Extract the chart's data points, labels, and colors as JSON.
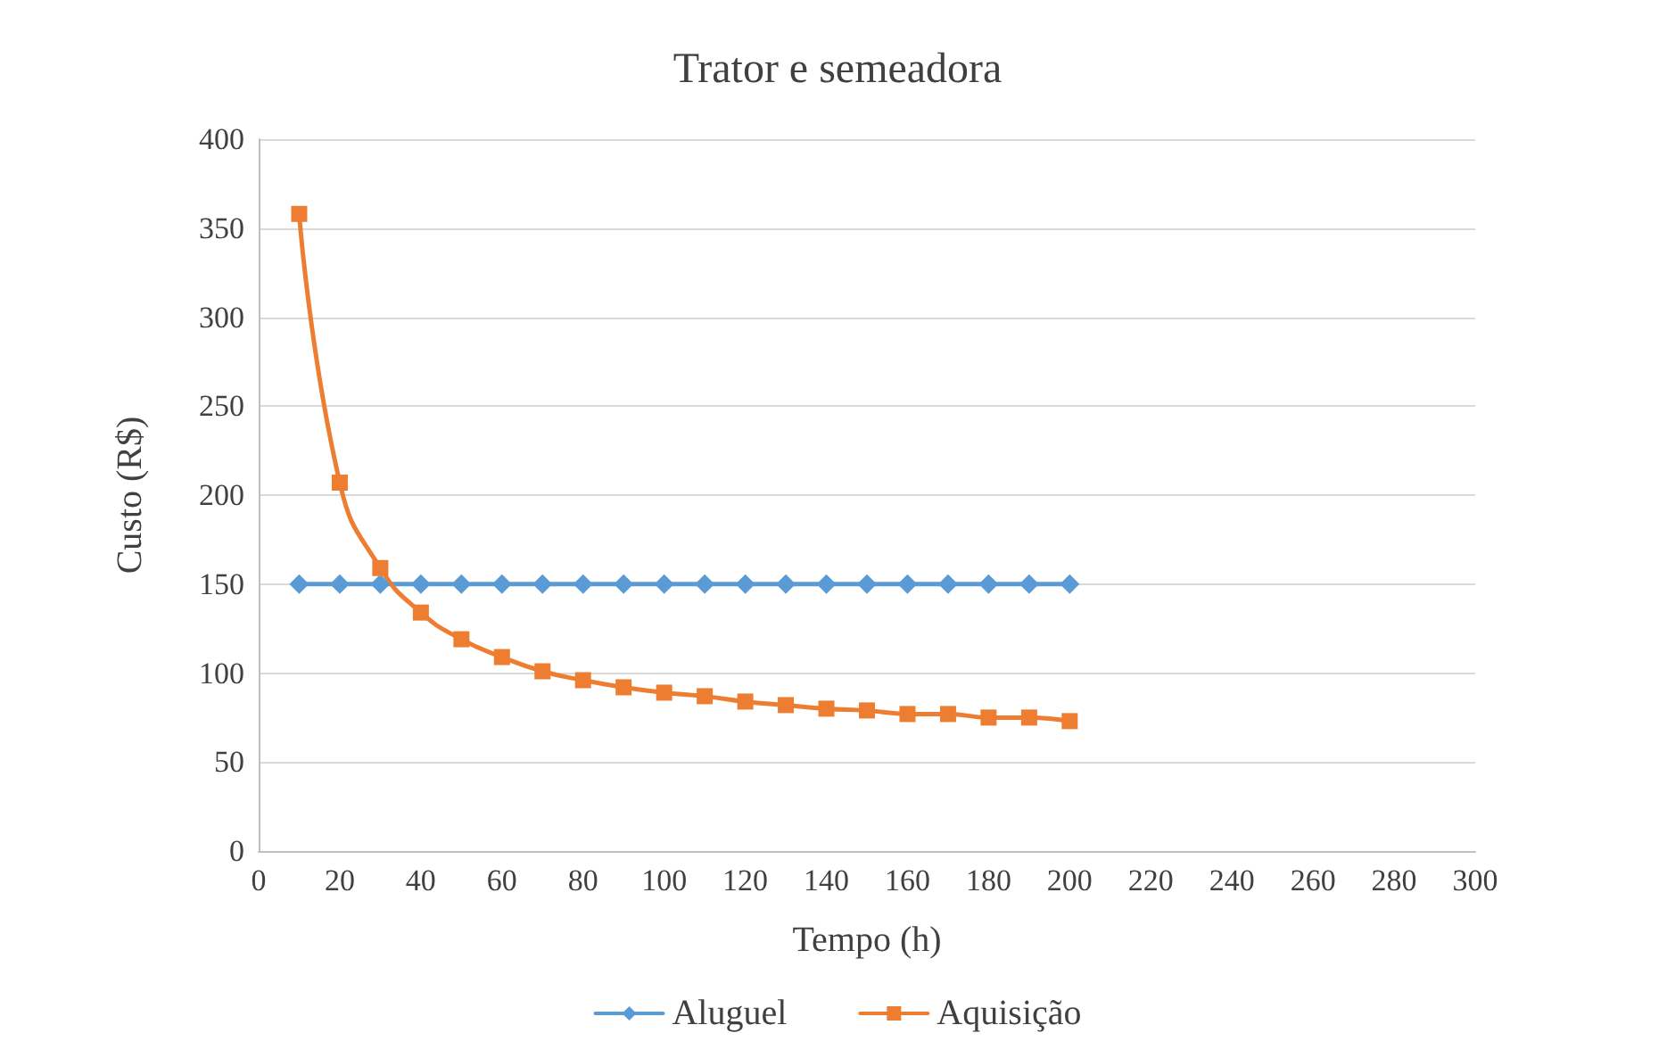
{
  "chart_data": {
    "type": "line",
    "title": "Trator e semeadora",
    "xlabel": "Tempo (h)",
    "ylabel": "Custo (R$)",
    "x": [
      10,
      20,
      30,
      40,
      50,
      60,
      70,
      80,
      90,
      100,
      110,
      120,
      130,
      140,
      150,
      160,
      170,
      180,
      190,
      200
    ],
    "series": [
      {
        "name": "Aluguel",
        "color": "#5b9bd5",
        "marker": "diamond",
        "values": [
          150,
          150,
          150,
          150,
          150,
          150,
          150,
          150,
          150,
          150,
          150,
          150,
          150,
          150,
          150,
          150,
          150,
          150,
          150,
          150
        ]
      },
      {
        "name": "Aquisição",
        "color": "#ed7d31",
        "marker": "square",
        "values": [
          358,
          207,
          159,
          134,
          119,
          109,
          101,
          96,
          92,
          89,
          87,
          84,
          82,
          80,
          79,
          77,
          77,
          75,
          75,
          73
        ]
      }
    ],
    "xlim": [
      0,
      300
    ],
    "xticks": [
      0,
      20,
      40,
      60,
      80,
      100,
      120,
      140,
      160,
      180,
      200,
      220,
      240,
      260,
      280,
      300
    ],
    "ylim": [
      0,
      400
    ],
    "yticks": [
      0,
      50,
      100,
      150,
      200,
      250,
      300,
      350,
      400
    ],
    "grid": "y",
    "legend": "bottom"
  }
}
